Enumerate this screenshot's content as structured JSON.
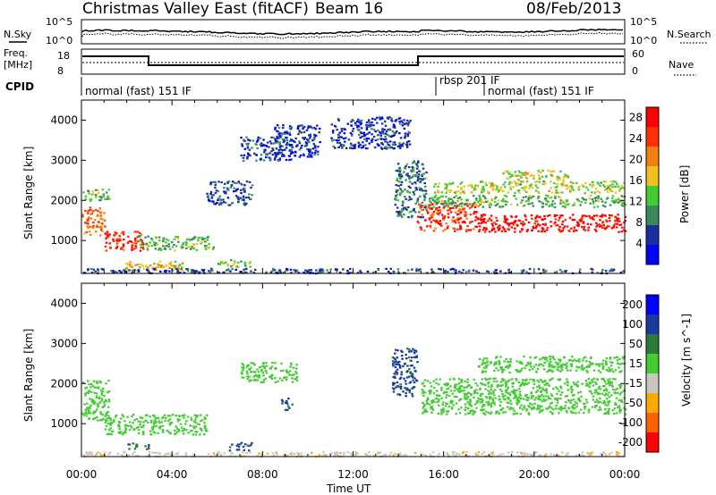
{
  "header": {
    "title": "Christmas Valley East (fitACF)",
    "beam": "Beam 16",
    "date": "08/Feb/2013"
  },
  "noise_panel": {
    "left_label": "N.Sky",
    "right_label": "N.Search",
    "left_ticks": [
      "10^5",
      "10^0"
    ],
    "right_ticks": [
      "10^5",
      "10^0"
    ]
  },
  "freq_panel": {
    "left_label_1": "Freq.",
    "left_label_2": "[MHz]",
    "right_label": "Nave",
    "left_ticks": [
      "18",
      "8"
    ],
    "right_ticks": [
      "60",
      "0"
    ]
  },
  "cpid": {
    "label": "CPID",
    "segments": [
      {
        "text": "normal (fast) 151 IF",
        "start_hour": 0.0
      },
      {
        "text": "rbsp 201 IF",
        "start_hour": 15.8
      },
      {
        "text": "normal (fast) 151 IF",
        "start_hour": 17.8
      }
    ]
  },
  "colors": {
    "power": [
      "#0000ff",
      "#1a2fa0",
      "#3a8a5a",
      "#44cc33",
      "#f0c020",
      "#f08010",
      "#ff3000",
      "#ff0000"
    ],
    "velocity": [
      "#ff0000",
      "#ff6000",
      "#ffaa00",
      "#c8c8c0",
      "#44cc33",
      "#2a7a3a",
      "#1a3aa0",
      "#0000ff"
    ]
  },
  "chart_data": [
    {
      "type": "heatmap",
      "name": "power",
      "ylabel": "Slant Range [km]",
      "y_ticks": [
        1000,
        2000,
        3000,
        4000
      ],
      "ylim": [
        180,
        4500
      ],
      "xlim": [
        0,
        24
      ],
      "colorbar_label": "Power [dB]",
      "colorbar_ticks": [
        4,
        8,
        12,
        16,
        20,
        24,
        28
      ],
      "colorbar_range": [
        0,
        30
      ],
      "regions": [
        {
          "t0": 0.0,
          "t1": 1.0,
          "r_center": 1500,
          "r_half": 350,
          "value": 22
        },
        {
          "t0": 0.0,
          "t1": 1.2,
          "r_center": 2150,
          "r_half": 150,
          "value": 12
        },
        {
          "t0": 1.0,
          "t1": 2.7,
          "r_center": 1000,
          "r_half": 250,
          "value": 26
        },
        {
          "t0": 2.5,
          "t1": 5.8,
          "r_center": 950,
          "r_half": 180,
          "value": 12
        },
        {
          "t0": 1.8,
          "t1": 4.5,
          "r_center": 380,
          "r_half": 120,
          "value": 18
        },
        {
          "t0": 6.0,
          "t1": 7.5,
          "r_center": 450,
          "r_half": 100,
          "value": 14
        },
        {
          "t0": 5.5,
          "t1": 7.5,
          "r_center": 2200,
          "r_half": 300,
          "value": 6
        },
        {
          "t0": 7.0,
          "t1": 9.3,
          "r_center": 3300,
          "r_half": 300,
          "value": 6
        },
        {
          "t0": 8.5,
          "t1": 10.5,
          "r_center": 3500,
          "r_half": 400,
          "value": 5
        },
        {
          "t0": 11.0,
          "t1": 14.5,
          "r_center": 3700,
          "r_half": 400,
          "value": 5
        },
        {
          "t0": 13.8,
          "t1": 15.2,
          "r_center": 2300,
          "r_half": 700,
          "value": 8
        },
        {
          "t0": 14.8,
          "t1": 17.5,
          "r_center": 1600,
          "r_half": 350,
          "value": 25
        },
        {
          "t0": 17.5,
          "t1": 24.0,
          "r_center": 1450,
          "r_half": 220,
          "value": 28
        },
        {
          "t0": 15.3,
          "t1": 24.0,
          "r_center": 2000,
          "r_half": 150,
          "value": 12
        },
        {
          "t0": 15.5,
          "t1": 24.0,
          "r_center": 2350,
          "r_half": 150,
          "value": 15
        },
        {
          "t0": 18.5,
          "t1": 21.5,
          "r_center": 2650,
          "r_half": 120,
          "value": 16
        },
        {
          "t0": 0.0,
          "t1": 24.0,
          "r_center": 260,
          "r_half": 60,
          "value": 6
        }
      ]
    },
    {
      "type": "heatmap",
      "name": "velocity",
      "ylabel": "Slant Range [km]",
      "xlabel": "Time UT",
      "x_ticks": [
        "00:00",
        "04:00",
        "08:00",
        "12:00",
        "16:00",
        "20:00",
        "00:00"
      ],
      "y_ticks": [
        1000,
        2000,
        3000,
        4000
      ],
      "ylim": [
        180,
        4500
      ],
      "xlim": [
        0,
        24
      ],
      "colorbar_label": "Velocity [m s^-1]",
      "colorbar_ticks": [
        200,
        100,
        50,
        15,
        -15,
        -50,
        -100,
        -200
      ],
      "regions": [
        {
          "t0": 0.0,
          "t1": 1.2,
          "r_center": 1600,
          "r_half": 500,
          "value": 0
        },
        {
          "t0": 1.0,
          "t1": 5.5,
          "r_center": 1000,
          "r_half": 250,
          "value": 0
        },
        {
          "t0": 2.0,
          "t1": 3.0,
          "r_center": 450,
          "r_half": 80,
          "value": 40
        },
        {
          "t0": 6.5,
          "t1": 7.5,
          "r_center": 450,
          "r_half": 100,
          "value": 60
        },
        {
          "t0": 8.8,
          "t1": 9.3,
          "r_center": 1500,
          "r_half": 150,
          "value": 60
        },
        {
          "t0": 7.0,
          "t1": 9.5,
          "r_center": 2300,
          "r_half": 250,
          "value": 0
        },
        {
          "t0": 13.7,
          "t1": 14.8,
          "r_center": 2300,
          "r_half": 600,
          "value": 60
        },
        {
          "t0": 15.0,
          "t1": 24.0,
          "r_center": 1700,
          "r_half": 450,
          "value": 0
        },
        {
          "t0": 17.5,
          "t1": 24.0,
          "r_center": 2500,
          "r_half": 200,
          "value": 0
        },
        {
          "t0": 0.0,
          "t1": 24.0,
          "r_center": 260,
          "r_half": 60,
          "value": -40
        }
      ]
    }
  ]
}
